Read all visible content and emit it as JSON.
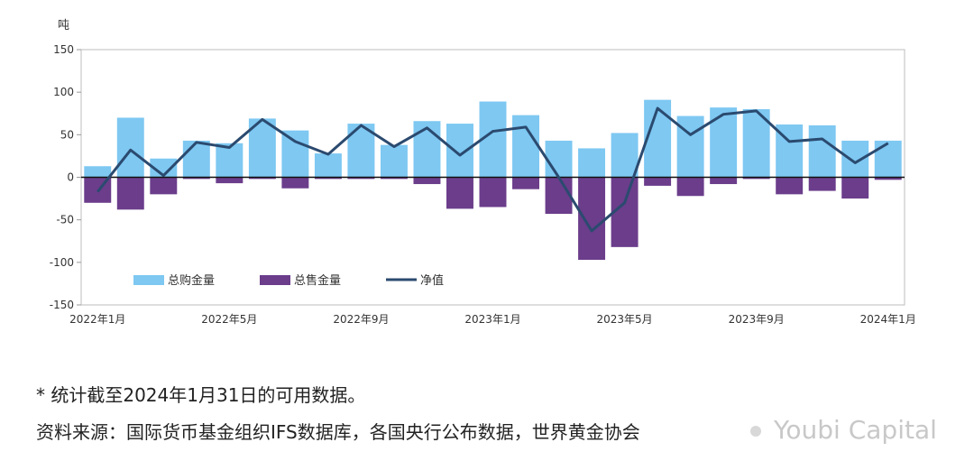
{
  "chart_data": {
    "type": "bar",
    "unit_label": "吨",
    "categories": [
      "2022-01",
      "2022-02",
      "2022-03",
      "2022-04",
      "2022-05",
      "2022-06",
      "2022-07",
      "2022-08",
      "2022-09",
      "2022-10",
      "2022-11",
      "2022-12",
      "2023-01",
      "2023-02",
      "2023-03",
      "2023-04",
      "2023-05",
      "2023-06",
      "2023-07",
      "2023-08",
      "2023-09",
      "2023-10",
      "2023-11",
      "2023-12",
      "2024-01"
    ],
    "x_tick_labels": [
      {
        "index": 0,
        "label": "2022年1月"
      },
      {
        "index": 4,
        "label": "2022年5月"
      },
      {
        "index": 8,
        "label": "2022年9月"
      },
      {
        "index": 12,
        "label": "2023年1月"
      },
      {
        "index": 16,
        "label": "2023年5月"
      },
      {
        "index": 20,
        "label": "2023年9月"
      },
      {
        "index": 24,
        "label": "2024年1月"
      }
    ],
    "ylim": [
      -150,
      150
    ],
    "yticks": [
      150,
      100,
      50,
      0,
      -50,
      -100,
      -150
    ],
    "y_tick_labels": [
      "150",
      "100",
      "50",
      "0",
      "-50",
      "-100",
      "-150"
    ],
    "series": [
      {
        "name": "总购金量",
        "type": "bar",
        "color": "#7ec8f2",
        "values": [
          13,
          70,
          22,
          43,
          40,
          69,
          55,
          28,
          63,
          38,
          66,
          63,
          89,
          73,
          43,
          34,
          52,
          91,
          72,
          82,
          80,
          62,
          61,
          43,
          43
        ]
      },
      {
        "name": "总售金量",
        "type": "bar",
        "color": "#6b3d8b",
        "values": [
          -30,
          -38,
          -20,
          -2,
          -7,
          -2,
          -13,
          -2,
          -2,
          -2,
          -8,
          -37,
          -35,
          -14,
          -43,
          -97,
          -82,
          -10,
          -22,
          -8,
          -2,
          -20,
          -16,
          -25,
          -3
        ]
      },
      {
        "name": "净值",
        "type": "line",
        "color": "#2b4a6f",
        "values": [
          -17,
          32,
          2,
          41,
          35,
          68,
          42,
          27,
          61,
          36,
          58,
          26,
          54,
          59,
          0,
          -63,
          -30,
          81,
          50,
          74,
          78,
          42,
          45,
          17,
          40
        ]
      }
    ],
    "legend_position": "lower-left",
    "grid": false
  },
  "notes": {
    "footnote": "* 统计截至2024年1月31日的可用数据。",
    "source": "资料来源：国际货币基金组织IFS数据库，各国央行公布数据，世界黄金协会"
  },
  "watermark": {
    "text": "Youbi Capital"
  }
}
